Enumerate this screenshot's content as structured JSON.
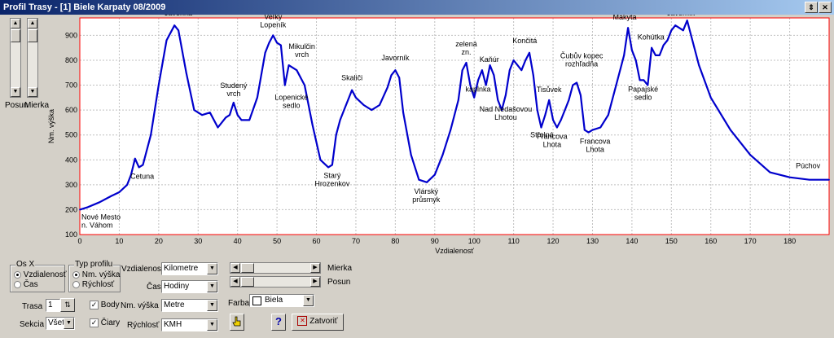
{
  "window": {
    "title": "Profil Trasy - [1] Biele Karpaty 08/2009",
    "restore_label": "⇕",
    "close_label": "✕"
  },
  "left": {
    "posun_label": "Posun",
    "mierka_label": "Mierka"
  },
  "chart_data": {
    "type": "line",
    "title": "",
    "xlabel": "Vzdialenosť",
    "ylabel": "Nm. výška",
    "xlim": [
      0,
      190
    ],
    "ylim": [
      100,
      970
    ],
    "x_ticks": [
      0,
      10,
      20,
      30,
      40,
      50,
      60,
      70,
      80,
      90,
      100,
      110,
      120,
      130,
      140,
      150,
      160,
      170,
      180
    ],
    "y_ticks": [
      100,
      200,
      300,
      400,
      500,
      600,
      700,
      800,
      900
    ],
    "grid": true,
    "series": [
      {
        "x": [
          0,
          2,
          5,
          8,
          10,
          12,
          13,
          14,
          15,
          16,
          18,
          20,
          22,
          24,
          25,
          27,
          29,
          31,
          33,
          35,
          37,
          38,
          39,
          40,
          41,
          43,
          45,
          47,
          48,
          49,
          50,
          51,
          52,
          53,
          55,
          57,
          59,
          61,
          63,
          64,
          65,
          66,
          67,
          68,
          69,
          70,
          72,
          74,
          76,
          78,
          79,
          80,
          81,
          82,
          84,
          86,
          88,
          90,
          92,
          94,
          96,
          97,
          98,
          99,
          100,
          101,
          102,
          103,
          104,
          105,
          106,
          107,
          108,
          109,
          110,
          112,
          113,
          114,
          115,
          116,
          117,
          118,
          119,
          120,
          121,
          122,
          123,
          124,
          125,
          126,
          127,
          128,
          129,
          130,
          132,
          134,
          136,
          138,
          139,
          140,
          141,
          142,
          143,
          144,
          145,
          146,
          147,
          148,
          149,
          150,
          151,
          152,
          153,
          154,
          155,
          157,
          160,
          165,
          170,
          175,
          180,
          185,
          190
        ],
        "y": [
          200,
          210,
          230,
          255,
          270,
          300,
          340,
          405,
          370,
          380,
          500,
          700,
          880,
          940,
          920,
          750,
          600,
          580,
          590,
          530,
          570,
          580,
          630,
          580,
          560,
          560,
          650,
          830,
          870,
          900,
          870,
          860,
          700,
          780,
          760,
          700,
          540,
          400,
          370,
          380,
          500,
          560,
          600,
          640,
          680,
          650,
          620,
          600,
          620,
          690,
          740,
          760,
          730,
          590,
          420,
          320,
          310,
          340,
          420,
          520,
          640,
          760,
          790,
          700,
          650,
          720,
          760,
          700,
          780,
          740,
          640,
          600,
          660,
          760,
          800,
          760,
          800,
          830,
          740,
          600,
          530,
          580,
          640,
          560,
          530,
          560,
          600,
          640,
          700,
          710,
          660,
          520,
          510,
          520,
          530,
          580,
          700,
          820,
          930,
          840,
          800,
          720,
          720,
          700,
          850,
          820,
          820,
          860,
          880,
          920,
          940,
          930,
          920,
          960,
          900,
          780,
          650,
          520,
          420,
          350,
          330,
          320,
          320
        ]
      }
    ],
    "annotations": [
      {
        "text": "Nové Mesto n. Váhom",
        "x": 0,
        "y": 200
      },
      {
        "text": "Cetuna",
        "x": 15,
        "y": 370
      },
      {
        "text": "Veľká Javorina",
        "x": 25,
        "y": 940
      },
      {
        "text": "Studený vrch",
        "x": 39,
        "y": 630
      },
      {
        "text": "Veľký Lopeník",
        "x": 49,
        "y": 900
      },
      {
        "text": "Lopenické sedlo",
        "x": 52,
        "y": 700
      },
      {
        "text": "Mikulčin vrch",
        "x": 53,
        "y": 780
      },
      {
        "text": "Starý Hrozenkov",
        "x": 64,
        "y": 380
      },
      {
        "text": "Skaliči",
        "x": 69,
        "y": 680
      },
      {
        "text": "Javorník",
        "x": 80,
        "y": 760
      },
      {
        "text": "Vlárský průsmyk",
        "x": 87,
        "y": 310
      },
      {
        "text": "zelená zn.",
        "x": 98,
        "y": 790
      },
      {
        "text": "kaplnka",
        "x": 101,
        "y": 720
      },
      {
        "text": "Kaňúr",
        "x": 103,
        "y": 760
      },
      {
        "text": "Nad Nedašovou Lhotou",
        "x": 108,
        "y": 640
      },
      {
        "text": "Končitá",
        "x": 112,
        "y": 830
      },
      {
        "text": "Tisůvek",
        "x": 119,
        "y": 640
      },
      {
        "text": "Střelná",
        "x": 118,
        "y": 530
      },
      {
        "text": "Francova Lhota",
        "x": 121,
        "y": 530
      },
      {
        "text": "Čubův kopec rozhľadňa",
        "x": 126,
        "y": 710
      },
      {
        "text": "Francova Lhota",
        "x": 129,
        "y": 510
      },
      {
        "text": "Mákyta",
        "x": 139,
        "y": 930
      },
      {
        "text": "Papajské sedlo",
        "x": 142,
        "y": 720
      },
      {
        "text": "Kohútka",
        "x": 144,
        "y": 850
      },
      {
        "text": "Malý Javorník",
        "x": 152,
        "y": 960
      },
      {
        "text": "Púchov",
        "x": 189,
        "y": 320
      }
    ],
    "line_color": "#0000cc",
    "frame_color": "#ff0000",
    "grid_color": "#c0c0c0"
  },
  "controls": {
    "osx": {
      "title": "Os X",
      "options": [
        "Vzdialenosť",
        "Čas"
      ],
      "selected": 0
    },
    "typ": {
      "title": "Typ profilu",
      "options": [
        "Nm. výška",
        "Rýchlosť"
      ],
      "selected": 0
    },
    "vzdialenost": {
      "label": "Vzdialenosť",
      "value": "Kilometre"
    },
    "cas": {
      "label": "Čas",
      "value": "Hodiny"
    },
    "nm_vyska": {
      "label": "Nm. výška",
      "value": "Metre"
    },
    "rychlost": {
      "label": "Rýchlosť",
      "value": "KMH"
    },
    "mierka_label": "Mierka",
    "posun_label": "Posun",
    "farba": {
      "label": "Farba",
      "value": "Biela",
      "swatch": "#ffffff"
    },
    "trasa": {
      "label": "Trasa",
      "value": "1"
    },
    "sekcia": {
      "label": "Sekcia",
      "value": "Všet"
    },
    "body": {
      "label": "Body",
      "checked": true
    },
    "ciary": {
      "label": "Čiary",
      "checked": true
    },
    "help_label": "?",
    "close_label": "Zatvoriť"
  }
}
